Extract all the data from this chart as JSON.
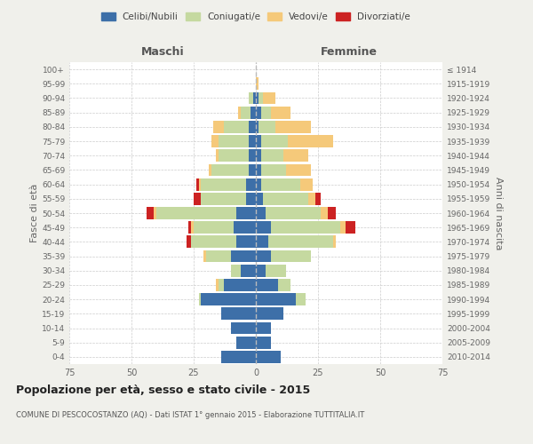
{
  "age_groups": [
    "0-4",
    "5-9",
    "10-14",
    "15-19",
    "20-24",
    "25-29",
    "30-34",
    "35-39",
    "40-44",
    "45-49",
    "50-54",
    "55-59",
    "60-64",
    "65-69",
    "70-74",
    "75-79",
    "80-84",
    "85-89",
    "90-94",
    "95-99",
    "100+"
  ],
  "birth_years": [
    "2010-2014",
    "2005-2009",
    "2000-2004",
    "1995-1999",
    "1990-1994",
    "1985-1989",
    "1980-1984",
    "1975-1979",
    "1970-1974",
    "1965-1969",
    "1960-1964",
    "1955-1959",
    "1950-1954",
    "1945-1949",
    "1940-1944",
    "1935-1939",
    "1930-1934",
    "1925-1929",
    "1920-1924",
    "1915-1919",
    "≤ 1914"
  ],
  "maschi": {
    "celibi": [
      14,
      8,
      10,
      14,
      22,
      13,
      6,
      10,
      8,
      9,
      8,
      4,
      4,
      3,
      3,
      3,
      3,
      2,
      1,
      0,
      0
    ],
    "coniugati": [
      0,
      0,
      0,
      0,
      1,
      2,
      4,
      10,
      18,
      16,
      32,
      18,
      18,
      15,
      12,
      12,
      10,
      4,
      2,
      0,
      0
    ],
    "vedovi": [
      0,
      0,
      0,
      0,
      0,
      1,
      0,
      1,
      0,
      1,
      1,
      0,
      1,
      1,
      1,
      3,
      4,
      1,
      0,
      0,
      0
    ],
    "divorziati": [
      0,
      0,
      0,
      0,
      0,
      0,
      0,
      0,
      2,
      1,
      3,
      3,
      1,
      0,
      0,
      0,
      0,
      0,
      0,
      0,
      0
    ]
  },
  "femmine": {
    "nubili": [
      10,
      6,
      6,
      11,
      16,
      9,
      4,
      6,
      5,
      6,
      4,
      3,
      2,
      2,
      2,
      2,
      1,
      2,
      1,
      0,
      0
    ],
    "coniugate": [
      0,
      0,
      0,
      0,
      4,
      5,
      8,
      16,
      26,
      28,
      22,
      18,
      16,
      10,
      9,
      11,
      7,
      4,
      2,
      0,
      0
    ],
    "vedove": [
      0,
      0,
      0,
      0,
      0,
      0,
      0,
      0,
      1,
      2,
      3,
      3,
      5,
      10,
      10,
      18,
      14,
      8,
      5,
      1,
      0
    ],
    "divorziate": [
      0,
      0,
      0,
      0,
      0,
      0,
      0,
      0,
      0,
      4,
      3,
      2,
      0,
      0,
      0,
      0,
      0,
      0,
      0,
      0,
      0
    ]
  },
  "colors": {
    "celibi": "#3d6fa8",
    "coniugati": "#c5d9a0",
    "vedovi": "#f5c97a",
    "divorziati": "#cc2222"
  },
  "xlim": 75,
  "title": "Popolazione per età, sesso e stato civile - 2015",
  "subtitle": "COMUNE DI PESCOCOSTANZO (AQ) - Dati ISTAT 1° gennaio 2015 - Elaborazione TUTTITALIA.IT",
  "ylabel_left": "Fasce di età",
  "ylabel_right": "Anni di nascita",
  "xlabel_maschi": "Maschi",
  "xlabel_femmine": "Femmine",
  "legend_labels": [
    "Celibi/Nubili",
    "Coniugati/e",
    "Vedovi/e",
    "Divorziati/e"
  ],
  "bg_color": "#f0f0eb",
  "plot_bg": "#ffffff"
}
